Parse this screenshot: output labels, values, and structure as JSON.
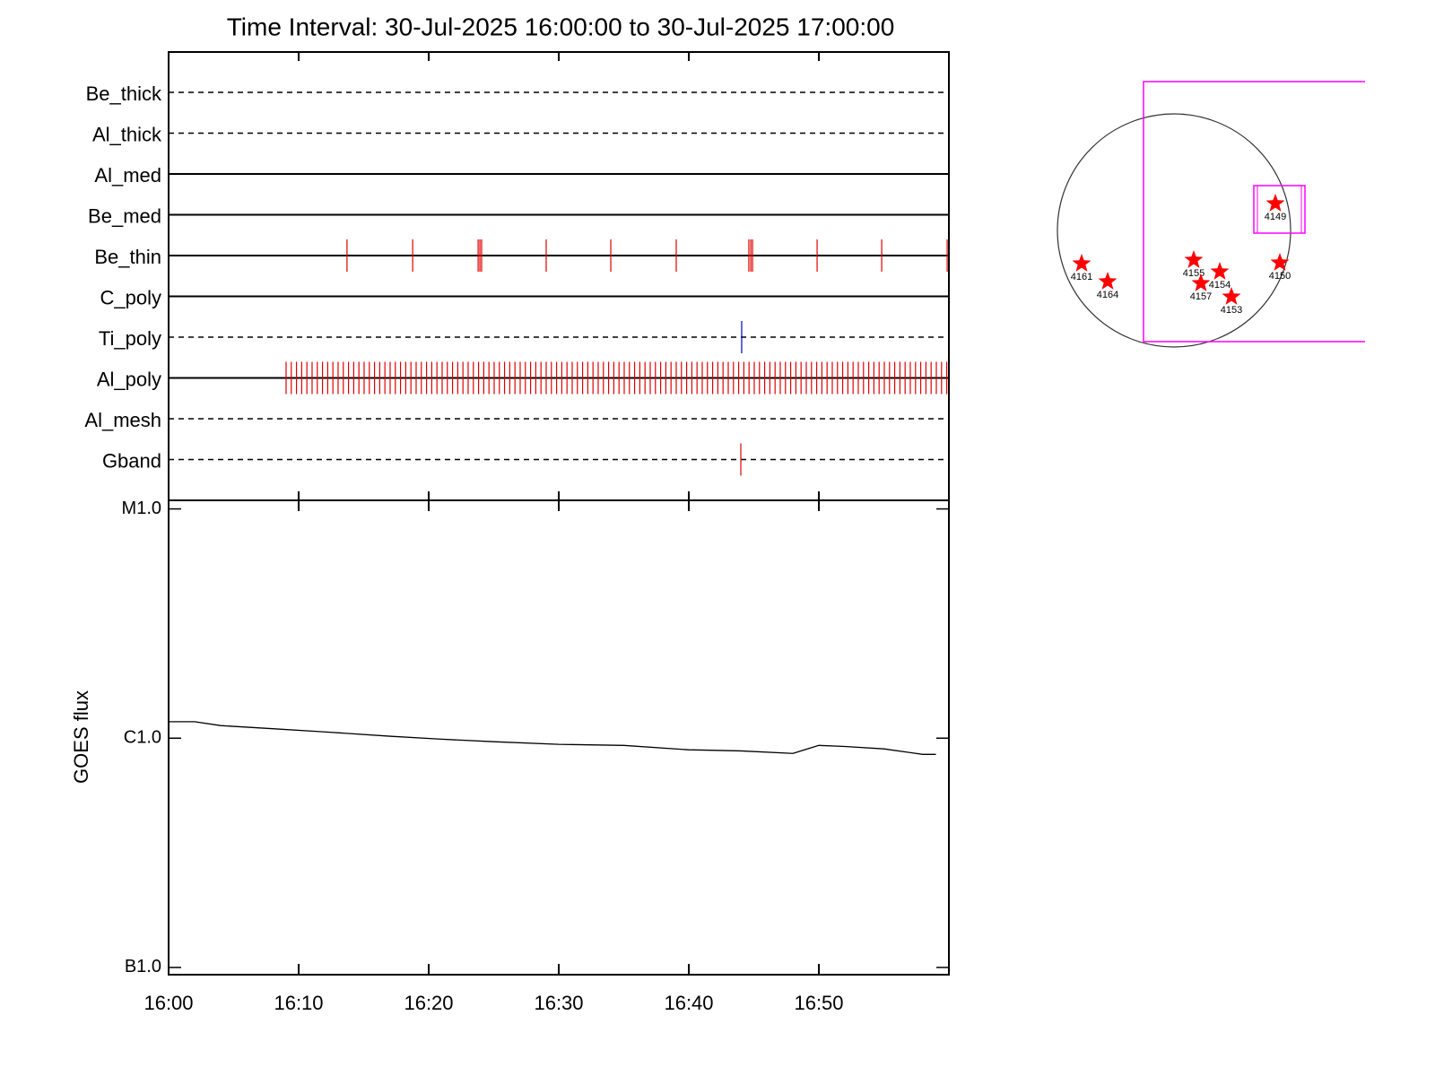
{
  "chart_data": [
    {
      "type": "event-timeline",
      "title": "Time Interval: 30-Jul-2025 16:00:00 to 30-Jul-2025 17:00:00",
      "xlim": [
        "16:00",
        "17:00"
      ],
      "xticks": [
        "16:00",
        "16:10",
        "16:20",
        "16:30",
        "16:40",
        "16:50"
      ],
      "rows": [
        {
          "name": "Be_thick",
          "style": "dashed",
          "events": []
        },
        {
          "name": "Al_thick",
          "style": "dashed",
          "events": []
        },
        {
          "name": "Al_med",
          "style": "solid",
          "events": []
        },
        {
          "name": "Be_med",
          "style": "solid",
          "events": []
        },
        {
          "name": "Be_thin",
          "style": "solid",
          "color": "#e00000",
          "events": [
            "16:13:43",
            "16:18:46",
            "16:23:48",
            "16:23:56",
            "16:24:04",
            "16:29:02",
            "16:34:00",
            "16:39:02",
            "16:44:37",
            "16:44:46",
            "16:44:54",
            "16:49:52",
            "16:54:50",
            "16:59:52"
          ]
        },
        {
          "name": "C_poly",
          "style": "solid",
          "events": []
        },
        {
          "name": "Ti_poly",
          "style": "dashed",
          "color": "#0000cc",
          "events": [
            "16:44:04"
          ]
        },
        {
          "name": "Al_poly",
          "style": "solid",
          "color": "#e00000",
          "events": [
            "16:09:02",
            "16:09:26",
            "16:09:50",
            "16:10:14",
            "16:10:38",
            "16:11:02",
            "16:11:26",
            "16:11:50",
            "16:12:14",
            "16:12:38",
            "16:13:02",
            "16:13:26",
            "16:13:50",
            "16:14:14",
            "16:14:38",
            "16:15:02",
            "16:15:26",
            "16:15:50",
            "16:16:14",
            "16:16:38",
            "16:17:02",
            "16:17:26",
            "16:17:50",
            "16:18:14",
            "16:18:38",
            "16:19:02",
            "16:19:26",
            "16:19:50",
            "16:20:14",
            "16:20:38",
            "16:21:02",
            "16:21:26",
            "16:21:50",
            "16:22:14",
            "16:22:38",
            "16:23:02",
            "16:23:26",
            "16:23:50",
            "16:24:14",
            "16:24:38",
            "16:25:02",
            "16:25:26",
            "16:25:50",
            "16:26:14",
            "16:26:38",
            "16:27:02",
            "16:27:26",
            "16:27:50",
            "16:28:14",
            "16:28:38",
            "16:29:02",
            "16:29:26",
            "16:29:50",
            "16:30:14",
            "16:30:38",
            "16:31:02",
            "16:31:26",
            "16:31:50",
            "16:32:14",
            "16:32:38",
            "16:33:02",
            "16:33:26",
            "16:33:50",
            "16:34:14",
            "16:34:38",
            "16:35:02",
            "16:35:26",
            "16:35:50",
            "16:36:14",
            "16:36:38",
            "16:37:02",
            "16:37:26",
            "16:37:50",
            "16:38:14",
            "16:38:38",
            "16:39:02",
            "16:39:26",
            "16:39:50",
            "16:40:14",
            "16:40:38",
            "16:41:02",
            "16:41:26",
            "16:41:50",
            "16:42:14",
            "16:42:38",
            "16:43:02",
            "16:43:26",
            "16:43:50",
            "16:44:14",
            "16:44:38",
            "16:45:02",
            "16:45:26",
            "16:45:50",
            "16:46:14",
            "16:46:38",
            "16:47:02",
            "16:47:26",
            "16:47:50",
            "16:48:14",
            "16:48:38",
            "16:49:02",
            "16:49:26",
            "16:49:50",
            "16:50:14",
            "16:50:38",
            "16:51:02",
            "16:51:26",
            "16:51:50",
            "16:52:14",
            "16:52:38",
            "16:53:02",
            "16:53:26",
            "16:53:50",
            "16:54:14",
            "16:54:38",
            "16:55:02",
            "16:55:26",
            "16:55:50",
            "16:56:14",
            "16:56:38",
            "16:57:02",
            "16:57:26",
            "16:57:50",
            "16:58:14",
            "16:58:38",
            "16:59:02",
            "16:59:26",
            "16:59:50"
          ]
        },
        {
          "name": "Al_mesh",
          "style": "dashed",
          "events": []
        },
        {
          "name": "Gband",
          "style": "dashed",
          "color": "#e00000",
          "events": [
            "16:44:00"
          ]
        }
      ]
    },
    {
      "type": "line",
      "y_label": "GOES flux",
      "color": "#000000",
      "ylog": true,
      "xlim": [
        "16:00",
        "17:00"
      ],
      "xticks": [
        "16:00",
        "16:10",
        "16:20",
        "16:30",
        "16:40",
        "16:50"
      ],
      "ylim": [
        9.3e-08,
        1.09e-05
      ],
      "yticks": [
        {
          "value": 1e-07,
          "label": "B1.0"
        },
        {
          "value": 1e-06,
          "label": "C1.0"
        },
        {
          "value": 1e-05,
          "label": "M1.0"
        }
      ],
      "x": [
        "16:00",
        "16:02",
        "16:04",
        "16:08",
        "16:12",
        "16:17",
        "16:21",
        "16:25",
        "16:30",
        "16:35",
        "16:40",
        "16:44",
        "16:48",
        "16:50",
        "16:52",
        "16:55",
        "16:58",
        "16:59"
      ],
      "values": [
        1.18e-06,
        1.18e-06,
        1.135e-06,
        1.1e-06,
        1.065e-06,
        1.02e-06,
        9.9e-07,
        9.65e-07,
        9.4e-07,
        9.3e-07,
        8.9e-07,
        8.8e-07,
        8.58e-07,
        9.3e-07,
        9.2e-07,
        8.98e-07,
        8.5e-07,
        8.5e-07
      ]
    }
  ],
  "map": {
    "regions": [
      "4149",
      "4161",
      "4164",
      "4155",
      "4154",
      "4157",
      "4153",
      "4150"
    ]
  }
}
